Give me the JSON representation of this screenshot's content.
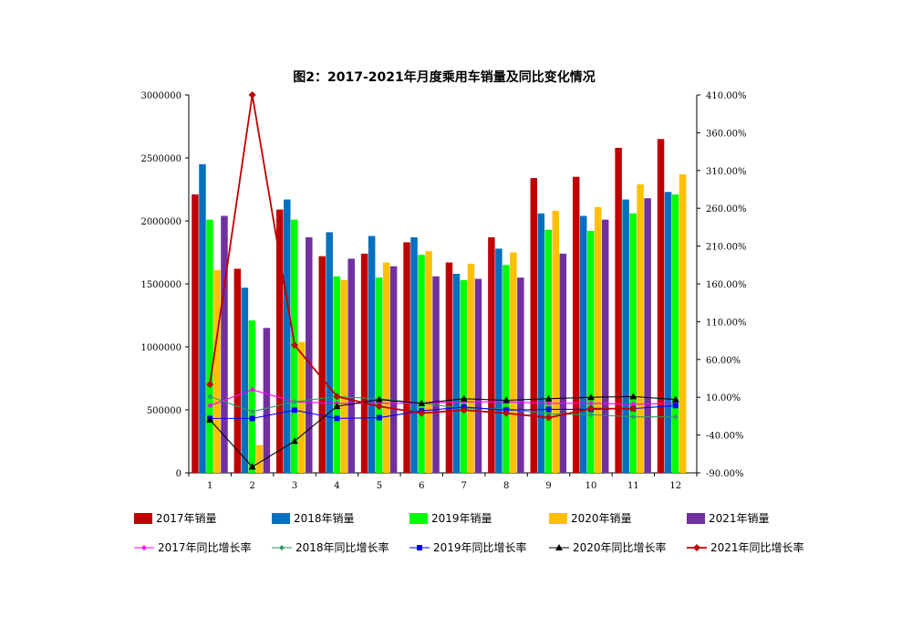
{
  "chart_data": {
    "type": "bar",
    "title": "图2：2017-2021年月度乘用车销量及同比变化情况",
    "categories": [
      "1",
      "2",
      "3",
      "4",
      "5",
      "6",
      "7",
      "8",
      "9",
      "10",
      "11",
      "12"
    ],
    "left_axis": {
      "ylim": [
        0,
        3000000
      ],
      "ticks": [
        "0",
        "500000",
        "1000000",
        "1500000",
        "2000000",
        "2500000",
        "3000000"
      ]
    },
    "right_axis": {
      "ylim": [
        -90,
        410
      ],
      "ticks": [
        "-90.00%",
        "-40.00%",
        "10.00%",
        "60.00%",
        "110.00%",
        "160.00%",
        "210.00%",
        "260.00%",
        "310.00%",
        "360.00%",
        "410.00%"
      ]
    },
    "bar_series": [
      {
        "name": "2017年销量",
        "color": "#C00000",
        "values": [
          2210000,
          1620000,
          2090000,
          1720000,
          1740000,
          1830000,
          1670000,
          1870000,
          2340000,
          2350000,
          2580000,
          2650000
        ]
      },
      {
        "name": "2018年销量",
        "color": "#0070C0",
        "values": [
          2450000,
          1470000,
          2170000,
          1910000,
          1880000,
          1870000,
          1580000,
          1780000,
          2060000,
          2040000,
          2170000,
          2230000
        ]
      },
      {
        "name": "2019年销量",
        "color": "#00FF00",
        "values": [
          2010000,
          1210000,
          2010000,
          1560000,
          1550000,
          1730000,
          1530000,
          1650000,
          1930000,
          1920000,
          2060000,
          2210000
        ]
      },
      {
        "name": "2020年销量",
        "color": "#FFC000",
        "values": [
          1610000,
          220000,
          1040000,
          1530000,
          1670000,
          1760000,
          1660000,
          1750000,
          2080000,
          2110000,
          2290000,
          2370000
        ]
      },
      {
        "name": "2021年销量",
        "color": "#7030A0",
        "values": [
          2040000,
          1150000,
          1870000,
          1700000,
          1640000,
          1560000,
          1540000,
          1550000,
          1740000,
          2010000,
          2180000,
          null
        ]
      }
    ],
    "line_series": [
      {
        "name": "2017年同比增长率",
        "color": "#FF00FF",
        "marker": "diamond-small",
        "values": [
          -1,
          20,
          4,
          2,
          2,
          2,
          4,
          4,
          2,
          2,
          1,
          2
        ]
      },
      {
        "name": "2018年同比增长率",
        "color": "#339966",
        "marker": "diamond-small",
        "values": [
          11,
          -9,
          4,
          11,
          8,
          2,
          -5,
          -5,
          -12,
          -13,
          -16,
          -16
        ]
      },
      {
        "name": "2019年同比增长率",
        "color": "#0000FF",
        "marker": "square",
        "values": [
          -18,
          -18,
          -7,
          -18,
          -17,
          -8,
          -3,
          -7,
          -6,
          -6,
          -5,
          -1
        ]
      },
      {
        "name": "2020年同比增长率",
        "color": "#000000",
        "marker": "triangle",
        "values": [
          -20,
          -82,
          -48,
          -2,
          7,
          2,
          8,
          6,
          8,
          10,
          11,
          7
        ]
      },
      {
        "name": "2021年同比增长率",
        "color": "#C00000",
        "marker": "diamond",
        "values": [
          27,
          410,
          79,
          11,
          -2,
          -11,
          -7,
          -11,
          -17,
          -5,
          -5,
          null
        ]
      }
    ],
    "legend_position": "bottom",
    "grid": false
  }
}
